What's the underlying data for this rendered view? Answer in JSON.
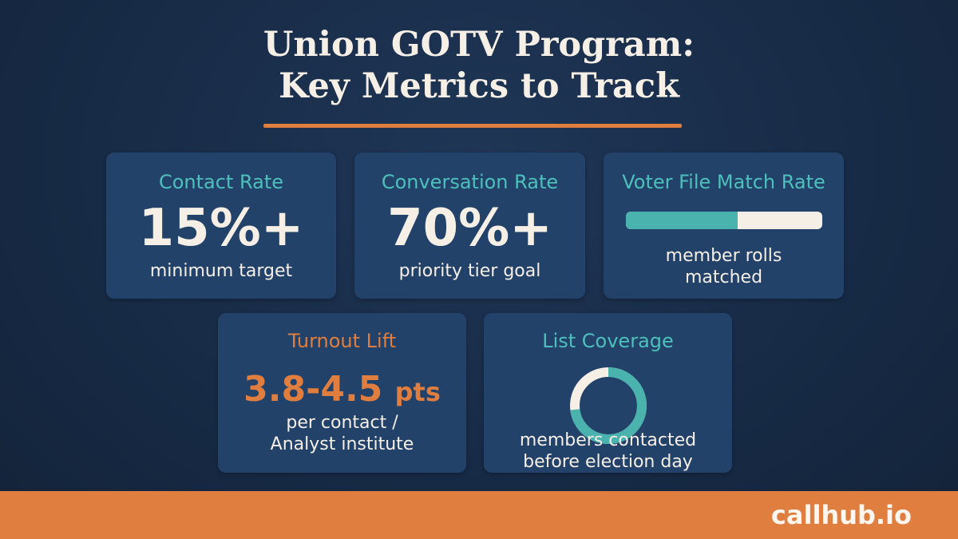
{
  "header": {
    "title_line1": "Union GOTV Program:",
    "title_line2": "Key Metrics to Track"
  },
  "cards": {
    "contact_rate": {
      "title": "Contact Rate",
      "value": "15%+",
      "caption": "minimum target"
    },
    "conversation_rate": {
      "title": "Conversation Rate",
      "value": "70%+",
      "caption": "priority tier goal"
    },
    "voter_file_match": {
      "title": "Voter File Match Rate",
      "progress_fraction": 0.57,
      "caption_line1": "member rolls",
      "caption_line2": "matched"
    },
    "turnout_lift": {
      "title": "Turnout Lift",
      "value": "3.8-4.5",
      "unit": "pts",
      "caption_line1": "per contact /",
      "caption_line2": "Analyst institute"
    },
    "list_coverage": {
      "title": "List Coverage",
      "ring_fraction": 0.73,
      "caption_line1": "members contacted",
      "caption_line2": "before election day"
    }
  },
  "footer": {
    "brand": "callhub.io"
  },
  "colors": {
    "accent_orange": "#e07e3f",
    "accent_teal": "#4ec0bb",
    "card_bg": "#22426a",
    "text_light": "#f5efe6"
  }
}
